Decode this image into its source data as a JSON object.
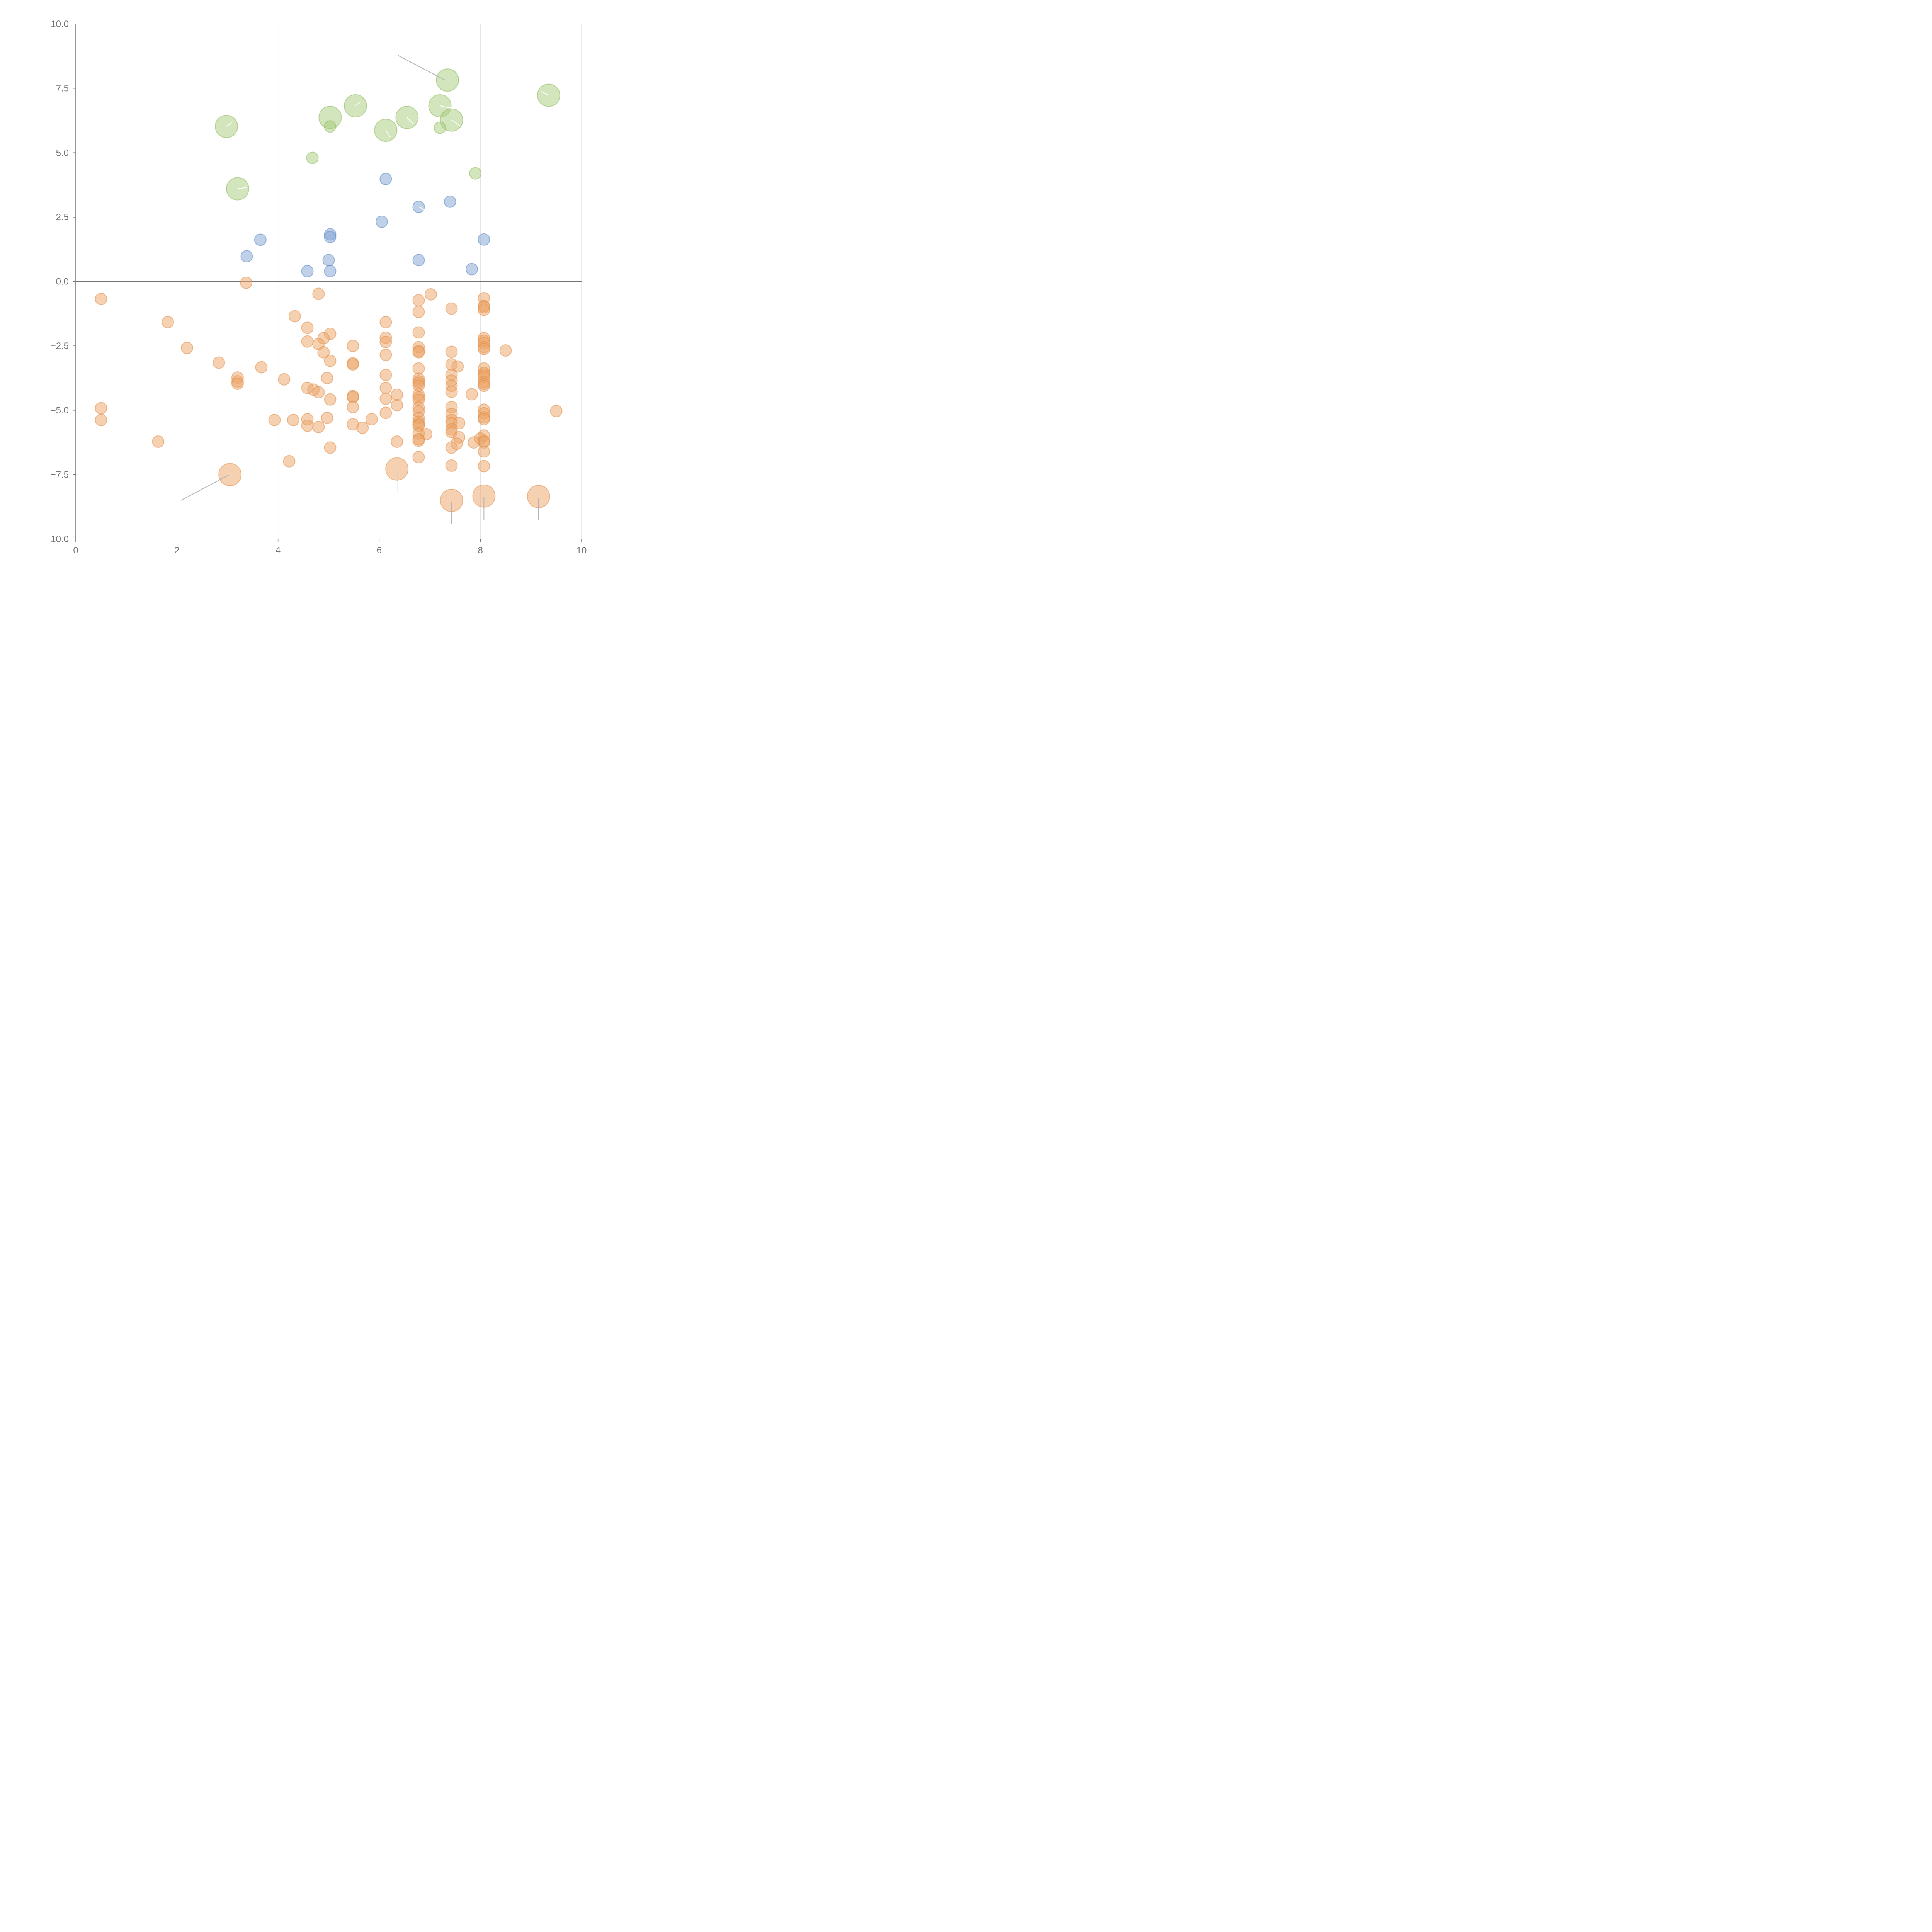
{
  "chart_data": {
    "type": "scatter",
    "subtype": "bubble",
    "title": "",
    "xlabel": "",
    "ylabel": "",
    "xlim": [
      0,
      10
    ],
    "ylim": [
      -10,
      10
    ],
    "x_ticks": [
      0,
      2,
      4,
      6,
      8,
      10
    ],
    "x_tick_labels": [
      "0",
      "2",
      "4",
      "6",
      "8",
      "10"
    ],
    "y_ticks": [
      -10,
      -7.5,
      -5,
      -2.5,
      0,
      2.5,
      5,
      7.5,
      10
    ],
    "y_tick_labels": [
      "−10.0",
      "−7.5",
      "−5.0",
      "−2.5",
      "0.0",
      "2.5",
      "5.0",
      "7.5",
      "10.0"
    ],
    "vertical_grid": true,
    "horizontal_grid": false,
    "zero_line": true,
    "series": [
      {
        "name": "green",
        "color": "#a8cc7a",
        "stroke": "#8db85a",
        "points": [
          [
            2.98,
            6.02,
            2
          ],
          [
            3.2,
            3.6,
            2
          ],
          [
            5.03,
            6.37,
            2
          ],
          [
            5.53,
            6.82,
            2
          ],
          [
            6.13,
            5.87,
            2
          ],
          [
            6.55,
            6.37,
            2
          ],
          [
            7.2,
            6.82,
            2
          ],
          [
            7.35,
            7.82,
            2
          ],
          [
            7.43,
            6.27,
            2
          ],
          [
            9.35,
            7.23,
            2
          ],
          [
            5.03,
            6.02,
            1
          ],
          [
            4.68,
            4.8,
            1
          ],
          [
            7.2,
            5.97,
            1
          ],
          [
            7.9,
            4.2,
            1
          ]
        ]
      },
      {
        "name": "blue",
        "color": "#7fa2d4",
        "stroke": "#5b84c4",
        "points": [
          [
            6.13,
            3.98,
            1
          ],
          [
            7.4,
            3.1,
            1
          ],
          [
            6.78,
            2.9,
            1
          ],
          [
            6.05,
            2.32,
            1
          ],
          [
            5.03,
            1.83,
            1
          ],
          [
            5.03,
            1.73,
            1
          ],
          [
            3.65,
            1.62,
            1
          ],
          [
            8.07,
            1.63,
            1
          ],
          [
            3.38,
            0.98,
            1
          ],
          [
            5.0,
            0.83,
            1
          ],
          [
            6.78,
            0.83,
            1
          ],
          [
            7.83,
            0.48,
            1
          ],
          [
            4.58,
            0.4,
            1
          ],
          [
            5.03,
            0.4,
            1
          ]
        ]
      },
      {
        "name": "orange",
        "color": "#eba366",
        "stroke": "#e08c47",
        "points": [
          [
            3.37,
            -0.05,
            1
          ],
          [
            0.5,
            -0.68,
            1
          ],
          [
            4.8,
            -0.48,
            1
          ],
          [
            7.02,
            -0.5,
            1
          ],
          [
            8.07,
            -0.65,
            1
          ],
          [
            8.07,
            -0.95,
            1
          ],
          [
            8.07,
            -1.0,
            1
          ],
          [
            8.07,
            -1.1,
            1
          ],
          [
            6.78,
            -0.73,
            1
          ],
          [
            6.78,
            -1.18,
            1
          ],
          [
            7.43,
            -1.05,
            1
          ],
          [
            4.33,
            -1.35,
            1
          ],
          [
            1.82,
            -1.58,
            1
          ],
          [
            6.13,
            -1.58,
            1
          ],
          [
            4.58,
            -1.8,
            1
          ],
          [
            5.03,
            -2.03,
            1
          ],
          [
            6.78,
            -1.98,
            1
          ],
          [
            4.9,
            -2.2,
            1
          ],
          [
            6.13,
            -2.18,
            1
          ],
          [
            6.13,
            -2.35,
            1
          ],
          [
            4.58,
            -2.33,
            1
          ],
          [
            4.8,
            -2.43,
            1
          ],
          [
            8.07,
            -2.2,
            1
          ],
          [
            8.07,
            -2.3,
            1
          ],
          [
            8.07,
            -2.4,
            1
          ],
          [
            8.07,
            -2.55,
            1
          ],
          [
            8.07,
            -2.62,
            1
          ],
          [
            2.2,
            -2.58,
            1
          ],
          [
            5.48,
            -2.5,
            1
          ],
          [
            6.78,
            -2.55,
            1
          ],
          [
            6.78,
            -2.7,
            1
          ],
          [
            6.78,
            -2.75,
            1
          ],
          [
            8.5,
            -2.68,
            1
          ],
          [
            7.43,
            -2.73,
            1
          ],
          [
            4.9,
            -2.75,
            1
          ],
          [
            6.13,
            -2.85,
            1
          ],
          [
            5.03,
            -3.08,
            1
          ],
          [
            2.83,
            -3.15,
            1
          ],
          [
            5.48,
            -3.18,
            1
          ],
          [
            5.48,
            -3.22,
            1
          ],
          [
            7.43,
            -3.22,
            1
          ],
          [
            7.55,
            -3.3,
            1
          ],
          [
            3.67,
            -3.33,
            1
          ],
          [
            6.78,
            -3.38,
            1
          ],
          [
            8.07,
            -3.38,
            1
          ],
          [
            8.07,
            -3.55,
            1
          ],
          [
            8.07,
            -3.62,
            1
          ],
          [
            8.07,
            -3.7,
            1
          ],
          [
            7.43,
            -3.62,
            1
          ],
          [
            6.13,
            -3.63,
            1
          ],
          [
            3.2,
            -3.73,
            1
          ],
          [
            3.2,
            -3.88,
            1
          ],
          [
            3.2,
            -3.97,
            1
          ],
          [
            4.97,
            -3.75,
            1
          ],
          [
            4.12,
            -3.8,
            1
          ],
          [
            6.78,
            -3.78,
            1
          ],
          [
            6.78,
            -3.88,
            1
          ],
          [
            6.78,
            -3.95,
            1
          ],
          [
            6.78,
            -4.05,
            1
          ],
          [
            7.43,
            -3.85,
            1
          ],
          [
            8.07,
            -3.9,
            1
          ],
          [
            8.07,
            -3.98,
            1
          ],
          [
            8.07,
            -4.05,
            1
          ],
          [
            7.43,
            -4.05,
            1
          ],
          [
            4.58,
            -4.13,
            1
          ],
          [
            4.7,
            -4.2,
            1
          ],
          [
            6.13,
            -4.13,
            1
          ],
          [
            7.43,
            -4.28,
            1
          ],
          [
            4.8,
            -4.3,
            1
          ],
          [
            7.83,
            -4.38,
            1
          ],
          [
            6.35,
            -4.4,
            1
          ],
          [
            5.48,
            -4.45,
            1
          ],
          [
            5.48,
            -4.5,
            1
          ],
          [
            6.78,
            -4.4,
            1
          ],
          [
            6.78,
            -4.5,
            1
          ],
          [
            6.78,
            -4.6,
            1
          ],
          [
            6.13,
            -4.55,
            1
          ],
          [
            5.03,
            -4.58,
            1
          ],
          [
            6.35,
            -4.8,
            1
          ],
          [
            5.48,
            -4.88,
            1
          ],
          [
            7.43,
            -4.88,
            1
          ],
          [
            0.5,
            -4.92,
            1
          ],
          [
            6.78,
            -4.9,
            1
          ],
          [
            6.78,
            -5.05,
            1
          ],
          [
            8.07,
            -4.98,
            1
          ],
          [
            8.07,
            -5.12,
            1
          ],
          [
            6.13,
            -5.1,
            1
          ],
          [
            7.43,
            -5.15,
            1
          ],
          [
            9.5,
            -5.03,
            1
          ],
          [
            8.07,
            -5.28,
            1
          ],
          [
            8.07,
            -5.35,
            1
          ],
          [
            6.78,
            -5.3,
            1
          ],
          [
            6.78,
            -5.45,
            1
          ],
          [
            6.78,
            -5.55,
            1
          ],
          [
            6.78,
            -5.6,
            1
          ],
          [
            0.5,
            -5.38,
            1
          ],
          [
            3.93,
            -5.38,
            1
          ],
          [
            4.3,
            -5.38,
            1
          ],
          [
            4.58,
            -5.35,
            1
          ],
          [
            4.97,
            -5.3,
            1
          ],
          [
            5.85,
            -5.35,
            1
          ],
          [
            7.43,
            -5.38,
            1
          ],
          [
            7.43,
            -5.5,
            1
          ],
          [
            7.58,
            -5.5,
            1
          ],
          [
            4.58,
            -5.6,
            1
          ],
          [
            5.48,
            -5.55,
            1
          ],
          [
            4.8,
            -5.65,
            1
          ],
          [
            5.67,
            -5.68,
            1
          ],
          [
            7.43,
            -5.75,
            1
          ],
          [
            7.43,
            -5.85,
            1
          ],
          [
            6.78,
            -5.9,
            1
          ],
          [
            6.93,
            -5.93,
            1
          ],
          [
            8.07,
            -5.98,
            1
          ],
          [
            7.58,
            -6.05,
            1
          ],
          [
            8.0,
            -6.1,
            1
          ],
          [
            8.07,
            -6.2,
            1
          ],
          [
            8.07,
            -6.25,
            1
          ],
          [
            7.87,
            -6.25,
            1
          ],
          [
            6.78,
            -6.12,
            1
          ],
          [
            6.78,
            -6.18,
            1
          ],
          [
            1.63,
            -6.22,
            1
          ],
          [
            6.35,
            -6.22,
            1
          ],
          [
            7.53,
            -6.3,
            1
          ],
          [
            5.03,
            -6.45,
            1
          ],
          [
            7.43,
            -6.45,
            1
          ],
          [
            8.07,
            -6.6,
            1
          ],
          [
            6.78,
            -6.82,
            1
          ],
          [
            4.22,
            -6.98,
            1
          ],
          [
            7.43,
            -7.15,
            1
          ],
          [
            8.07,
            -7.17,
            1
          ],
          [
            3.05,
            -7.5,
            2
          ],
          [
            6.35,
            -7.28,
            2
          ],
          [
            7.43,
            -8.5,
            2
          ],
          [
            8.07,
            -8.33,
            2
          ],
          [
            9.15,
            -8.35,
            2
          ]
        ]
      }
    ],
    "leader_lines_grey": [
      [
        [
          6.37,
          8.78
        ],
        [
          7.3,
          7.82
        ]
      ],
      [
        [
          2.08,
          -8.5
        ],
        [
          3.02,
          -7.52
        ]
      ],
      [
        [
          6.37,
          -7.32
        ],
        [
          6.37,
          -8.2
        ]
      ],
      [
        [
          7.43,
          -8.55
        ],
        [
          7.43,
          -9.42
        ]
      ],
      [
        [
          8.07,
          -8.38
        ],
        [
          8.07,
          -9.25
        ]
      ],
      [
        [
          9.15,
          -8.4
        ],
        [
          9.15,
          -9.27
        ]
      ]
    ],
    "leader_lines_white": [
      [
        [
          2.98,
          6.02
        ],
        [
          3.1,
          6.2
        ]
      ],
      [
        [
          3.2,
          3.6
        ],
        [
          3.38,
          3.65
        ]
      ],
      [
        [
          5.53,
          6.82
        ],
        [
          5.63,
          6.98
        ]
      ],
      [
        [
          6.13,
          5.87
        ],
        [
          6.22,
          5.6
        ]
      ],
      [
        [
          6.55,
          6.37
        ],
        [
          6.68,
          6.1
        ]
      ],
      [
        [
          7.2,
          6.82
        ],
        [
          7.45,
          6.72
        ]
      ],
      [
        [
          7.43,
          6.27
        ],
        [
          7.6,
          6.05
        ]
      ],
      [
        [
          9.35,
          7.23
        ],
        [
          9.2,
          7.38
        ]
      ],
      [
        [
          6.78,
          2.9
        ],
        [
          6.9,
          2.78
        ]
      ]
    ]
  }
}
